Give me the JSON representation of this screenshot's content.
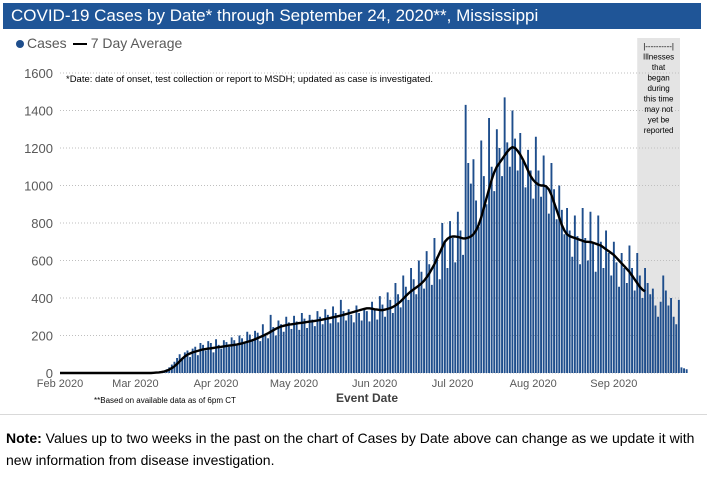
{
  "title": "COVID-19 Cases by Date* through September 24, 2020**, Mississippi",
  "legend": {
    "cases": "Cases",
    "avg": "7 Day Average"
  },
  "footnote_date": "*Date: date of onset, test collection or report to MSDH; updated as case is investigated.",
  "footnote_data": "**Based on available data as of 6pm CT",
  "shaded_note": [
    "|----------|",
    "Illnesses",
    "that",
    "began",
    "during",
    "this time",
    "may not",
    "yet be",
    "reported"
  ],
  "note": {
    "label": "Note:",
    "text": " Values up to two weeks in the past on the chart of Cases by Date above can change as we update it with new information from disease investigation."
  },
  "colors": {
    "bar": "#1f4e8c",
    "avg": "#000000",
    "title_bg": "#1f5597",
    "shade": "#d9d9d9"
  },
  "chart_data": {
    "type": "bar",
    "title": "COVID-19 Cases by Date* through September 24, 2020**, Mississippi",
    "xlabel": "Event Date",
    "ylabel": "",
    "ylim": [
      0,
      1600
    ],
    "yticks": [
      0,
      200,
      400,
      600,
      800,
      1000,
      1200,
      1400,
      1600
    ],
    "xticks": [
      "Feb 2020",
      "Mar 2020",
      "Apr 2020",
      "May 2020",
      "Jun 2020",
      "Jul 2020",
      "Aug 2020",
      "Sep 2020"
    ],
    "x_start": "2020-02-01",
    "shaded_from": "2020-09-10",
    "legend_position": "top-left",
    "grid": true,
    "series": [
      {
        "name": "Cases",
        "kind": "bar",
        "values": [
          0,
          0,
          0,
          0,
          0,
          0,
          0,
          0,
          0,
          0,
          0,
          0,
          0,
          0,
          0,
          0,
          0,
          0,
          0,
          0,
          0,
          0,
          0,
          0,
          0,
          0,
          0,
          0,
          0,
          0,
          0,
          0,
          0,
          0,
          0,
          1,
          2,
          3,
          5,
          8,
          12,
          20,
          30,
          45,
          60,
          80,
          100,
          70,
          110,
          120,
          85,
          130,
          140,
          95,
          160,
          150,
          120,
          170,
          160,
          110,
          180,
          150,
          130,
          175,
          165,
          140,
          190,
          175,
          150,
          200,
          185,
          160,
          220,
          205,
          175,
          225,
          215,
          170,
          260,
          210,
          185,
          310,
          245,
          200,
          280,
          260,
          220,
          300,
          270,
          235,
          305,
          275,
          230,
          320,
          290,
          240,
          310,
          285,
          250,
          330,
          300,
          260,
          340,
          310,
          265,
          355,
          320,
          270,
          390,
          330,
          280,
          340,
          310,
          270,
          360,
          320,
          280,
          345,
          330,
          275,
          380,
          340,
          285,
          410,
          365,
          300,
          430,
          390,
          320,
          480,
          420,
          350,
          520,
          460,
          390,
          560,
          500,
          420,
          600,
          540,
          450,
          650,
          580,
          470,
          720,
          620,
          500,
          800,
          700,
          560,
          810,
          720,
          590,
          860,
          760,
          630,
          1430,
          1120,
          1010,
          1140,
          920,
          780,
          1240,
          1050,
          900,
          1360,
          1100,
          970,
          1300,
          1200,
          1050,
          1470,
          1230,
          1100,
          1400,
          1250,
          1080,
          1280,
          1130,
          990,
          1190,
          1080,
          930,
          1260,
          1080,
          940,
          1160,
          990,
          850,
          1120,
          980,
          820,
          1000,
          870,
          740,
          880,
          760,
          620,
          840,
          730,
          580,
          880,
          720,
          600,
          860,
          690,
          540,
          840,
          700,
          560,
          760,
          640,
          520,
          700,
          590,
          460,
          640,
          560,
          480,
          680,
          560,
          440,
          640,
          520,
          400,
          560,
          480,
          420,
          450,
          360,
          300,
          380,
          520,
          440,
          360,
          400,
          300,
          260,
          390,
          30,
          25,
          20
        ]
      },
      {
        "name": "7 Day Average",
        "kind": "line",
        "values": [
          0,
          0,
          0,
          0,
          0,
          0,
          0,
          0,
          0,
          0,
          0,
          0,
          0,
          0,
          0,
          0,
          0,
          0,
          0,
          0,
          0,
          0,
          0,
          0,
          0,
          0,
          0,
          0,
          0,
          0,
          0,
          0,
          0,
          0,
          0,
          0,
          1,
          2,
          3,
          5,
          8,
          12,
          18,
          26,
          36,
          48,
          62,
          76,
          88,
          98,
          104,
          110,
          114,
          118,
          122,
          126,
          128,
          130,
          132,
          134,
          136,
          138,
          140,
          142,
          144,
          146,
          148,
          150,
          152,
          155,
          158,
          162,
          166,
          170,
          175,
          180,
          186,
          192,
          198,
          205,
          212,
          220,
          228,
          236,
          242,
          248,
          252,
          255,
          258,
          260,
          262,
          264,
          266,
          268,
          270,
          272,
          274,
          276,
          278,
          280,
          282,
          285,
          288,
          291,
          294,
          297,
          300,
          303,
          306,
          310,
          314,
          318,
          322,
          326,
          330,
          334,
          338,
          342,
          345,
          345,
          343,
          340,
          338,
          336,
          335,
          338,
          342,
          346,
          352,
          360,
          370,
          382,
          396,
          410,
          424,
          436,
          446,
          456,
          466,
          478,
          492,
          510,
          530,
          555,
          580,
          610,
          640,
          670,
          700,
          715,
          725,
          728,
          728,
          726,
          722,
          718,
          718,
          722,
          728,
          740,
          760,
          790,
          830,
          880,
          930,
          980,
          1030,
          1070,
          1100,
          1120,
          1140,
          1160,
          1180,
          1195,
          1205,
          1200,
          1185,
          1165,
          1140,
          1110,
          1080,
          1050,
          1030,
          1015,
          1005,
          1000,
          1000,
          995,
          980,
          950,
          910,
          870,
          830,
          790,
          760,
          740,
          730,
          725,
          720,
          715,
          710,
          705,
          700,
          700,
          698,
          695,
          690,
          685,
          680,
          670,
          660,
          650,
          640,
          630,
          615,
          600,
          585,
          570,
          555,
          540,
          520,
          500,
          480,
          460,
          445,
          435
        ]
      }
    ]
  }
}
